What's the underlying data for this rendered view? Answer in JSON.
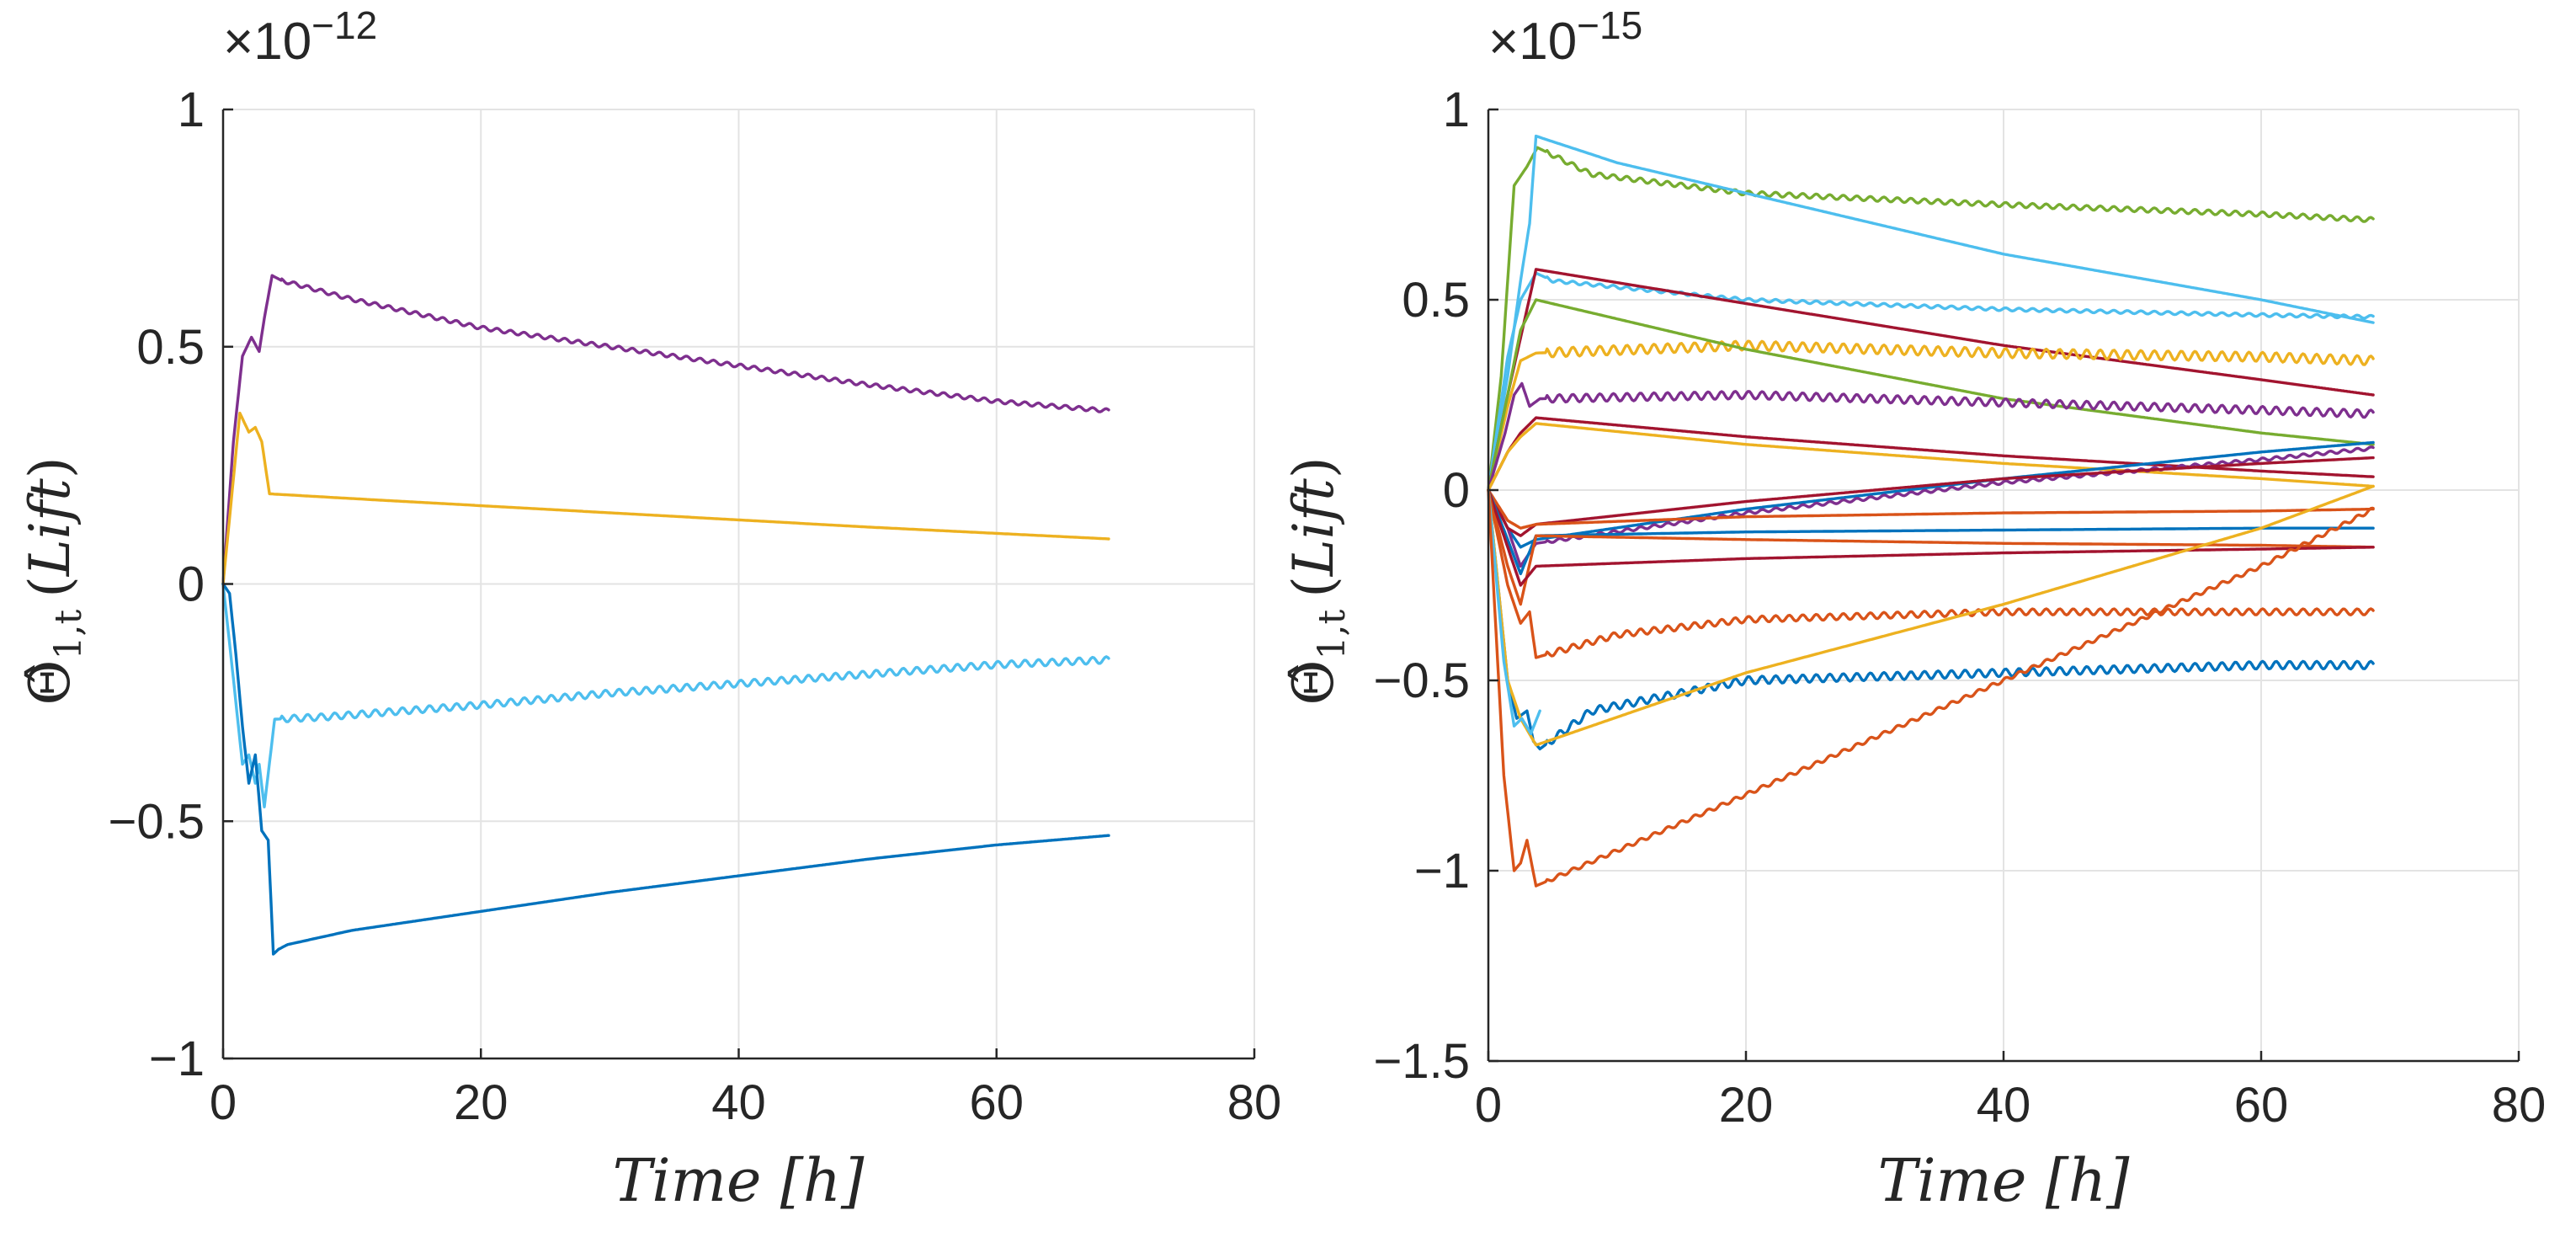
{
  "chart_data": [
    {
      "type": "line",
      "id": "left",
      "xlabel": "Time [h]",
      "ylabel": "Θ̂1,t (Lift)",
      "ylabel_parts": {
        "theta": "Θ̂",
        "sub": "1,t",
        "paren_open": "(",
        "word": "Lift",
        "paren_close": ")"
      },
      "y_exponent": {
        "base": "×10",
        "power": "−12"
      },
      "xlim": [
        0,
        80
      ],
      "ylim": [
        -1,
        1
      ],
      "xticks": [
        0,
        20,
        40,
        60,
        80
      ],
      "xtick_labels": [
        "0",
        "20",
        "40",
        "60",
        "80"
      ],
      "yticks": [
        -1,
        -0.5,
        0,
        0.5,
        1
      ],
      "ytick_labels": [
        "−1",
        "−0.5",
        "0",
        "0.5",
        "1"
      ],
      "grid": true,
      "series": [
        {
          "name": "s1",
          "color": "#7E2F8E",
          "ripple": 0.004,
          "x": [
            0,
            0.8,
            1.5,
            2.2,
            2.8,
            3.2,
            3.8,
            4.5,
            10,
            20,
            30,
            40,
            50,
            60,
            68.7
          ],
          "y": [
            0,
            0.3,
            0.48,
            0.52,
            0.49,
            0.56,
            0.65,
            0.64,
            0.6,
            0.54,
            0.5,
            0.46,
            0.42,
            0.385,
            0.365
          ]
        },
        {
          "name": "s2",
          "color": "#EDB120",
          "ripple": 0,
          "x": [
            0,
            1.3,
            2,
            2.5,
            3,
            3.6,
            10,
            30,
            50,
            68.7
          ],
          "y": [
            0,
            0.36,
            0.32,
            0.33,
            0.3,
            0.19,
            0.18,
            0.15,
            0.12,
            0.095
          ]
        },
        {
          "name": "s3",
          "color": "#4DBEEE",
          "ripple": 0.007,
          "x": [
            0,
            0.8,
            1.5,
            2,
            2.5,
            2.8,
            3.2,
            3.5,
            4,
            8,
            20,
            30,
            40,
            50,
            60,
            68.7
          ],
          "y": [
            0,
            -0.2,
            -0.38,
            -0.36,
            -0.42,
            -0.38,
            -0.47,
            -0.4,
            -0.285,
            -0.28,
            -0.255,
            -0.23,
            -0.21,
            -0.19,
            -0.17,
            -0.16
          ]
        },
        {
          "name": "s4",
          "color": "#0072BD",
          "ripple": 0,
          "x": [
            0,
            0.5,
            1,
            1.5,
            2,
            2.5,
            3,
            3.5,
            3.9,
            4.3,
            5,
            10,
            20,
            30,
            40,
            50,
            60,
            68.7
          ],
          "y": [
            0,
            -0.02,
            -0.15,
            -0.3,
            -0.42,
            -0.36,
            -0.52,
            -0.54,
            -0.78,
            -0.77,
            -0.76,
            -0.73,
            -0.69,
            -0.65,
            -0.615,
            -0.58,
            -0.55,
            -0.53
          ]
        }
      ]
    },
    {
      "type": "line",
      "id": "right",
      "xlabel": "Time [h]",
      "ylabel": "Θ̂1,t (Lift)",
      "ylabel_parts": {
        "theta": "Θ̂",
        "sub": "1,t",
        "paren_open": "(",
        "word": "Lift",
        "paren_close": ")"
      },
      "y_exponent": {
        "base": "×10",
        "power": "−15"
      },
      "xlim": [
        0,
        80
      ],
      "ylim": [
        -1.5,
        1
      ],
      "xticks": [
        0,
        20,
        40,
        60,
        80
      ],
      "xtick_labels": [
        "0",
        "20",
        "40",
        "60",
        "80"
      ],
      "yticks": [
        -1.5,
        -1,
        -0.5,
        0,
        0.5,
        1
      ],
      "ytick_labels": [
        "−1.5",
        "−1",
        "−0.5",
        "0",
        "0.5",
        "1"
      ],
      "grid": true,
      "series": [
        {
          "name": "r1",
          "color": "#77AC30",
          "ripple": 0.006,
          "x": [
            0,
            1,
            2,
            3,
            3.8,
            8,
            20,
            40,
            60,
            68.7
          ],
          "y": [
            0,
            0.3,
            0.8,
            0.85,
            0.9,
            0.83,
            0.78,
            0.75,
            0.725,
            0.71
          ]
        },
        {
          "name": "r2",
          "color": "#4DBEEE",
          "ripple": 0,
          "x": [
            0,
            1.5,
            2.5,
            3.2,
            3.7,
            10,
            20,
            40,
            60,
            68.7
          ],
          "y": [
            0,
            0.3,
            0.55,
            0.7,
            0.93,
            0.86,
            0.78,
            0.62,
            0.5,
            0.44
          ]
        },
        {
          "name": "r3",
          "color": "#4DBEEE",
          "ripple": 0.004,
          "x": [
            0,
            1.5,
            2.5,
            3.7,
            5,
            20,
            40,
            60,
            68.7
          ],
          "y": [
            0,
            0.35,
            0.5,
            0.57,
            0.55,
            0.5,
            0.475,
            0.46,
            0.455
          ]
        },
        {
          "name": "r4",
          "color": "#A2142F",
          "ripple": 0,
          "x": [
            0,
            1.5,
            2.5,
            3.7,
            20,
            40,
            60,
            68.7
          ],
          "y": [
            0,
            0.25,
            0.4,
            0.58,
            0.49,
            0.38,
            0.29,
            0.25
          ]
        },
        {
          "name": "r5",
          "color": "#EDB120",
          "ripple": 0.012,
          "x": [
            0,
            1.5,
            2.5,
            3.7,
            20,
            40,
            60,
            68.7
          ],
          "y": [
            0,
            0.22,
            0.34,
            0.36,
            0.38,
            0.36,
            0.35,
            0.34
          ]
        },
        {
          "name": "r6",
          "color": "#77AC30",
          "ripple": 0,
          "x": [
            0,
            1.5,
            2.5,
            3.7,
            20,
            40,
            60,
            68.7
          ],
          "y": [
            0,
            0.25,
            0.42,
            0.5,
            0.37,
            0.24,
            0.15,
            0.12
          ]
        },
        {
          "name": "r7",
          "color": "#7E2F8E",
          "ripple": 0.01,
          "x": [
            0,
            1.3,
            2,
            2.6,
            3.2,
            4,
            20,
            40,
            60,
            68.7
          ],
          "y": [
            0,
            0.15,
            0.25,
            0.28,
            0.22,
            0.24,
            0.25,
            0.23,
            0.21,
            0.2
          ]
        },
        {
          "name": "r8",
          "color": "#A2142F",
          "ripple": 0,
          "x": [
            0,
            1.5,
            2.5,
            3.7,
            20,
            40,
            60,
            68.7
          ],
          "y": [
            0,
            0.1,
            0.15,
            0.19,
            0.14,
            0.09,
            0.05,
            0.035
          ]
        },
        {
          "name": "r9",
          "color": "#EDB120",
          "ripple": 0,
          "x": [
            0,
            1.5,
            2.5,
            3.7,
            20,
            40,
            60,
            68.7
          ],
          "y": [
            0,
            0.1,
            0.14,
            0.175,
            0.12,
            0.07,
            0.03,
            0.01
          ]
        },
        {
          "name": "r10",
          "color": "#0072BD",
          "ripple": 0,
          "x": [
            0,
            1.5,
            2.5,
            3.7,
            20,
            40,
            60,
            68.7
          ],
          "y": [
            0,
            -0.1,
            -0.15,
            -0.13,
            -0.05,
            0.03,
            0.1,
            0.125
          ]
        },
        {
          "name": "r11",
          "color": "#7E2F8E",
          "ripple": 0.004,
          "x": [
            0,
            1.5,
            2.5,
            3.7,
            20,
            40,
            60,
            68.7
          ],
          "y": [
            0,
            -0.1,
            -0.2,
            -0.14,
            -0.06,
            0.02,
            0.08,
            0.11
          ]
        },
        {
          "name": "r12",
          "color": "#A2142F",
          "ripple": 0,
          "x": [
            0,
            1.5,
            2.5,
            3.7,
            20,
            40,
            60,
            68.7
          ],
          "y": [
            0,
            -0.1,
            -0.12,
            -0.09,
            -0.03,
            0.03,
            0.07,
            0.085
          ]
        },
        {
          "name": "r13",
          "color": "#D95319",
          "ripple": 0,
          "x": [
            0,
            1.5,
            2.5,
            3.7,
            20,
            40,
            60,
            68.7
          ],
          "y": [
            0,
            -0.08,
            -0.1,
            -0.09,
            -0.07,
            -0.06,
            -0.055,
            -0.05
          ]
        },
        {
          "name": "r14",
          "color": "#0072BD",
          "ripple": 0,
          "x": [
            0,
            1.5,
            2.5,
            3.7,
            20,
            40,
            60,
            68.7
          ],
          "y": [
            0,
            -0.13,
            -0.22,
            -0.12,
            -0.11,
            -0.105,
            -0.1,
            -0.1
          ]
        },
        {
          "name": "r15",
          "color": "#D95319",
          "ripple": 0,
          "x": [
            0,
            1.5,
            2.5,
            3.7,
            20,
            40,
            60,
            68.7
          ],
          "y": [
            0,
            -0.2,
            -0.3,
            -0.12,
            -0.13,
            -0.14,
            -0.145,
            -0.15
          ]
        },
        {
          "name": "r16",
          "color": "#A2142F",
          "ripple": 0,
          "x": [
            0,
            1.5,
            2.5,
            3.7,
            20,
            40,
            60,
            68.7
          ],
          "y": [
            0,
            -0.15,
            -0.25,
            -0.2,
            -0.18,
            -0.165,
            -0.155,
            -0.15
          ]
        },
        {
          "name": "r17",
          "color": "#D95319",
          "ripple": 0.008,
          "x": [
            0,
            1.5,
            2.5,
            3.2,
            3.7,
            10,
            20,
            40,
            60,
            68.7
          ],
          "y": [
            0,
            -0.25,
            -0.35,
            -0.32,
            -0.44,
            -0.38,
            -0.34,
            -0.32,
            -0.32,
            -0.32
          ]
        },
        {
          "name": "r18",
          "color": "#0072BD",
          "ripple": 0.01,
          "x": [
            0,
            1.5,
            2.2,
            3,
            3.5,
            4,
            8,
            20,
            40,
            60,
            68.7
          ],
          "y": [
            0,
            -0.5,
            -0.6,
            -0.58,
            -0.66,
            -0.68,
            -0.58,
            -0.5,
            -0.48,
            -0.46,
            -0.46
          ]
        },
        {
          "name": "r19",
          "color": "#EDB120",
          "ripple": 0,
          "x": [
            0,
            1.5,
            2.5,
            3.7,
            20,
            40,
            60,
            68.7
          ],
          "y": [
            0,
            -0.5,
            -0.6,
            -0.67,
            -0.48,
            -0.3,
            -0.1,
            0.01
          ]
        },
        {
          "name": "r20",
          "color": "#4DBEEE",
          "ripple": 0,
          "x": [
            0,
            1.2,
            2,
            2.6,
            3.3,
            4
          ],
          "y": [
            0,
            -0.45,
            -0.62,
            -0.6,
            -0.64,
            -0.58
          ]
        },
        {
          "name": "r21",
          "color": "#D95319",
          "ripple": 0.005,
          "x": [
            0,
            1.2,
            2,
            2.5,
            3,
            3.7,
            20,
            40,
            60,
            68.7
          ],
          "y": [
            0,
            -0.75,
            -1.0,
            -0.98,
            -0.92,
            -1.04,
            -0.8,
            -0.5,
            -0.2,
            -0.05
          ]
        }
      ]
    }
  ]
}
